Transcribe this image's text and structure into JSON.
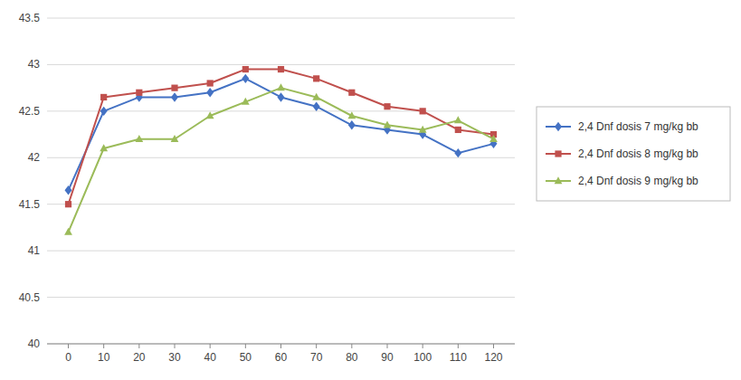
{
  "chart_data": {
    "type": "line",
    "x": [
      0,
      10,
      20,
      30,
      40,
      50,
      60,
      70,
      80,
      90,
      100,
      110,
      120
    ],
    "series": [
      {
        "name": "2,4 Dnf dosis 7 mg/kg bb",
        "color": "#4472C4",
        "marker": "diamond",
        "values": [
          41.65,
          42.5,
          42.65,
          42.65,
          42.7,
          42.85,
          42.65,
          42.55,
          42.35,
          42.3,
          42.25,
          42.05,
          42.15
        ]
      },
      {
        "name": "2,4 Dnf dosis 8 mg/kg bb",
        "color": "#C0504D",
        "marker": "square",
        "values": [
          41.5,
          42.65,
          42.7,
          42.75,
          42.8,
          42.95,
          42.95,
          42.85,
          42.7,
          42.55,
          42.5,
          42.3,
          42.25
        ]
      },
      {
        "name": "2,4 Dnf dosis 9 mg/kg bb",
        "color": "#9BBB59",
        "marker": "triangle",
        "values": [
          41.2,
          42.1,
          42.2,
          42.2,
          42.45,
          42.6,
          42.75,
          42.65,
          42.45,
          42.35,
          42.3,
          42.4,
          42.2
        ]
      }
    ],
    "xlim": [
      -6,
      126
    ],
    "xticks": [
      0,
      10,
      20,
      30,
      40,
      50,
      60,
      70,
      80,
      90,
      100,
      110,
      120
    ],
    "ylim": [
      40,
      43.5
    ],
    "yticks": [
      40,
      40.5,
      41,
      41.5,
      42,
      42.5,
      43,
      43.5
    ],
    "grid": "y",
    "legend": "right"
  }
}
